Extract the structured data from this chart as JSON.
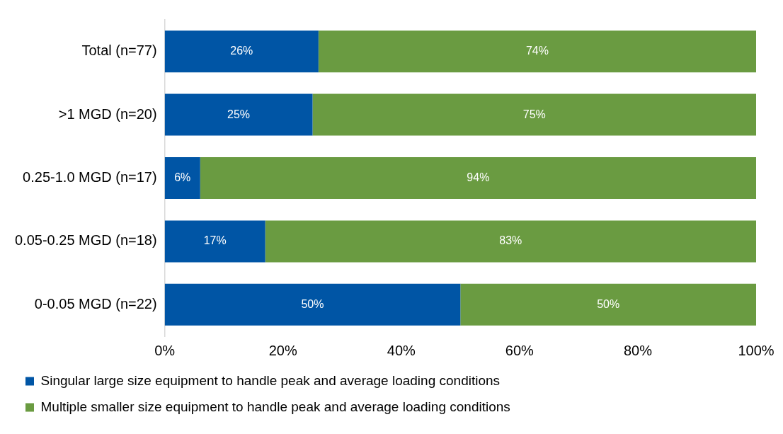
{
  "chart_data": {
    "type": "bar",
    "orientation": "horizontal",
    "stacked": true,
    "categories": [
      "Total (n=77)",
      ">1 MGD (n=20)",
      "0.25-1.0 MGD (n=17)",
      "0.05-0.25 MGD (n=18)",
      "0-0.05 MGD (n=22)"
    ],
    "series": [
      {
        "name": "Singular large size equipment to handle peak and average loading conditions",
        "color": "#0055a5",
        "values": [
          26,
          25,
          6,
          17,
          50
        ],
        "value_labels": [
          "26%",
          "25%",
          "6%",
          "17%",
          "50%"
        ]
      },
      {
        "name": "Multiple smaller size equipment to handle peak and average loading conditions",
        "color": "#6a9b41",
        "values": [
          74,
          75,
          94,
          83,
          50
        ],
        "value_labels": [
          "74%",
          "75%",
          "94%",
          "83%",
          "50%"
        ]
      }
    ],
    "xlim": [
      0,
      100
    ],
    "xticks": [
      {
        "value": 0,
        "label": "0%"
      },
      {
        "value": 20,
        "label": "20%"
      },
      {
        "value": 40,
        "label": "40%"
      },
      {
        "value": 60,
        "label": "60%"
      },
      {
        "value": 80,
        "label": "80%"
      },
      {
        "value": 100,
        "label": "100%"
      }
    ],
    "grid": false,
    "legend": "bottom"
  }
}
